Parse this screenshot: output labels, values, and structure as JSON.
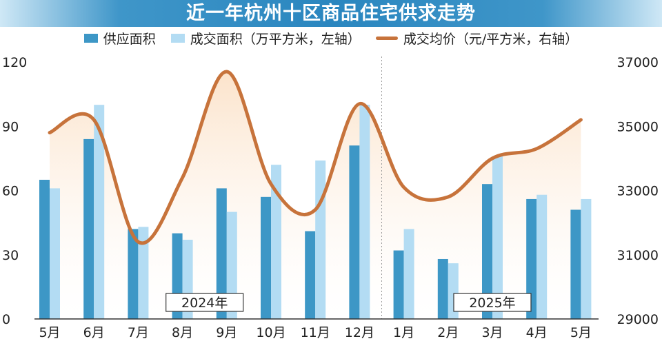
{
  "title": "近一年杭州十区商品住宅供求走势",
  "legend": {
    "supply": "供应面积",
    "deal": "成交面积（万平方米，左轴）",
    "price": "成交均价（元/平方米，右轴）"
  },
  "colors": {
    "supply": "#3d97c6",
    "deal": "#b3dcf3",
    "price": "#c7733b",
    "price_fill": "#fbe0c5",
    "title_bar": "#2a86bf"
  },
  "chart_data": {
    "type": "bar",
    "categories": [
      "5月",
      "6月",
      "7月",
      "8月",
      "9月",
      "10月",
      "11月",
      "12月",
      "1月",
      "2月",
      "3月",
      "4月",
      "5月"
    ],
    "year_labels": [
      {
        "label": "2024年",
        "span": [
          0,
          7
        ]
      },
      {
        "label": "2025年",
        "span": [
          8,
          12
        ]
      }
    ],
    "series": [
      {
        "name": "供应面积",
        "axis": "left",
        "type": "bar",
        "values": [
          65,
          84,
          42,
          40,
          61,
          57,
          41,
          81,
          32,
          28,
          63,
          56,
          51
        ]
      },
      {
        "name": "成交面积",
        "axis": "left",
        "type": "bar",
        "values": [
          61,
          100,
          43,
          37,
          50,
          72,
          74,
          100,
          42,
          26,
          76,
          58,
          56
        ]
      },
      {
        "name": "成交均价",
        "axis": "right",
        "type": "line",
        "values": [
          34800,
          35200,
          31400,
          33400,
          36700,
          33200,
          32400,
          35700,
          33100,
          32800,
          34000,
          34300,
          35200
        ]
      }
    ],
    "y_left": {
      "ticks": [
        0,
        30,
        60,
        90,
        120
      ],
      "ylim": [
        0,
        120
      ]
    },
    "y_right": {
      "ticks": [
        29000,
        31000,
        33000,
        35000,
        37000
      ],
      "ylim": [
        29000,
        37000
      ]
    },
    "grid": false,
    "legend_position": "top"
  }
}
